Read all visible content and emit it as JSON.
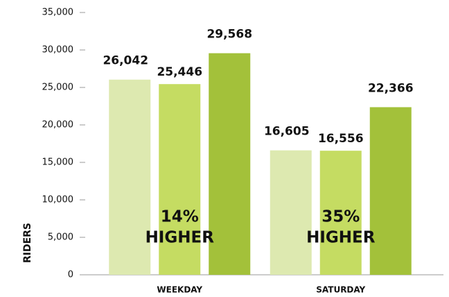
{
  "chart_data": {
    "type": "bar",
    "ylabel": "RIDERS",
    "categories": [
      "WEEKDAY",
      "SATURDAY"
    ],
    "series": [
      {
        "color": "#dde9b0",
        "values": [
          26042,
          16605
        ],
        "value_labels": [
          "26,042",
          "16,605"
        ]
      },
      {
        "color": "#c5dc62",
        "values": [
          25446,
          16556
        ],
        "value_labels": [
          "25,446",
          "16,556"
        ]
      },
      {
        "color": "#a3c13a",
        "values": [
          29568,
          22366
        ],
        "value_labels": [
          "29,568",
          "22,366"
        ]
      }
    ],
    "annotations": [
      "14%",
      "HIGHER",
      "35%",
      "HIGHER"
    ],
    "ylim": [
      0,
      35000
    ],
    "yticks": [
      0,
      {
        "value": 5000,
        "label": "5,000"
      },
      {
        "value": 10000,
        "label": "10,000"
      },
      {
        "value": 15000,
        "label": "15,000"
      },
      {
        "value": 20000,
        "label": "20,000"
      },
      {
        "value": 25000,
        "label": "25,000"
      },
      {
        "value": 30000,
        "label": "30,000"
      },
      {
        "value": 35000,
        "label": "35,000"
      }
    ],
    "axis_color": "#999999"
  }
}
